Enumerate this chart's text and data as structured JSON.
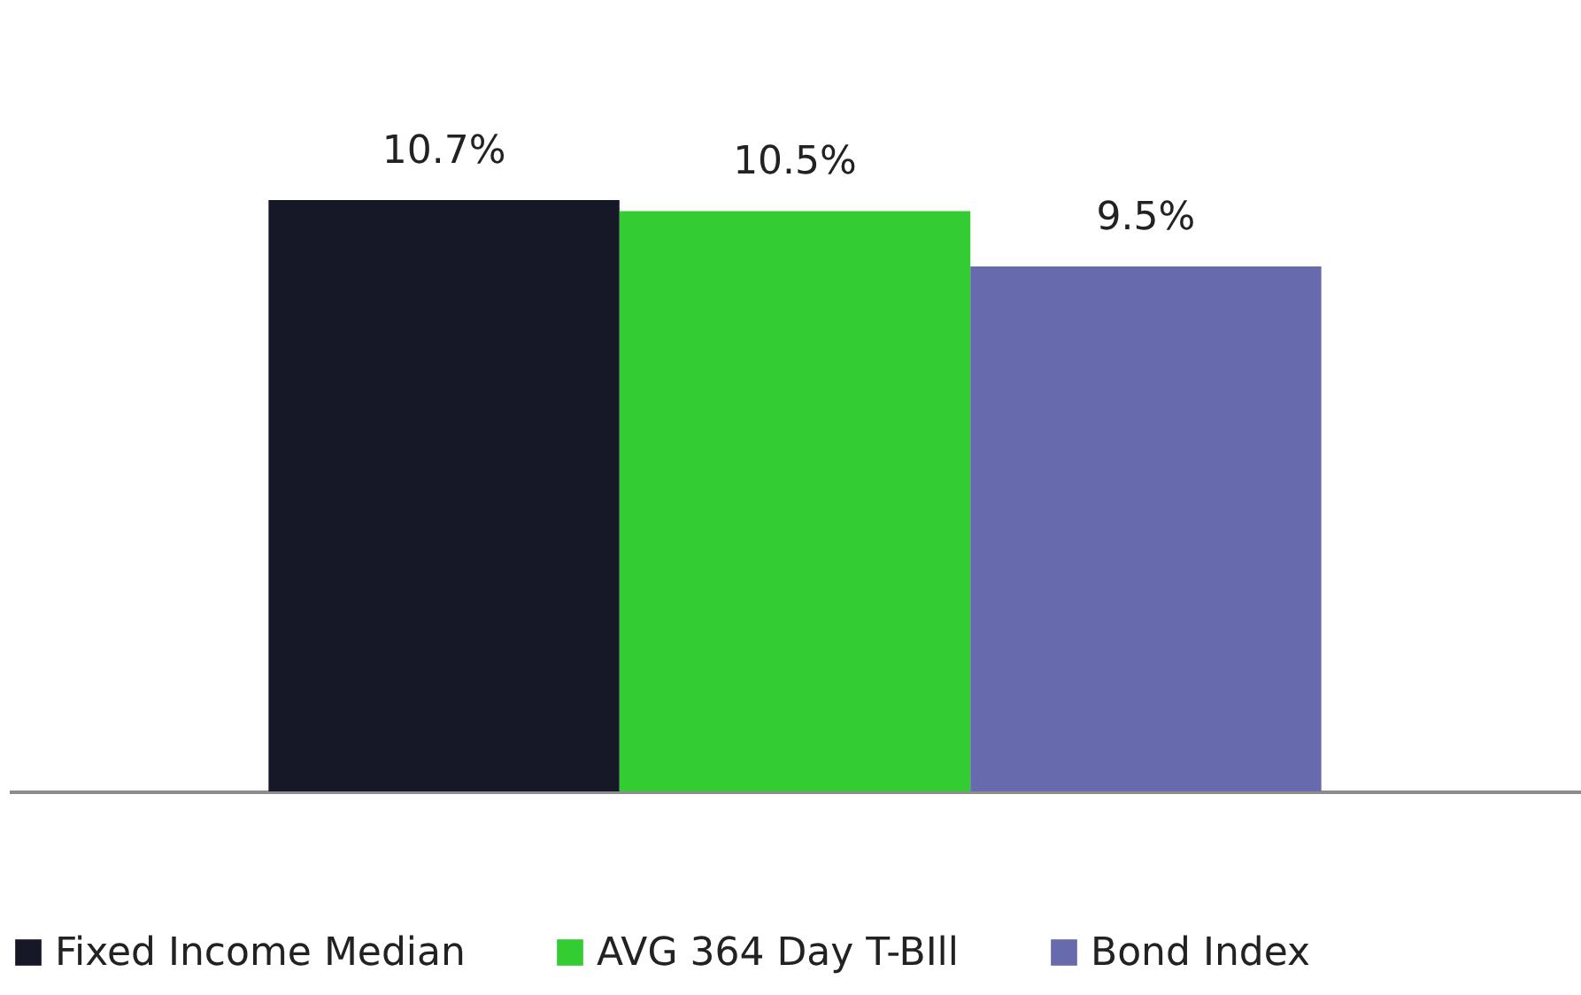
{
  "chart_data": {
    "type": "bar",
    "categories": [
      null
    ],
    "series": [
      {
        "name": "Fixed Income Median",
        "color": "#161827",
        "values": [
          10.7
        ],
        "value_labels": [
          "10.7%"
        ]
      },
      {
        "name": "AVG 364 Day T-BIll",
        "color": "#33cc33",
        "values": [
          10.5
        ],
        "value_labels": [
          "10.5%"
        ]
      },
      {
        "name": "Bond Index",
        "color": "#676aac",
        "values": [
          9.5
        ],
        "value_labels": [
          "9.5%"
        ]
      }
    ],
    "legend": "bottom",
    "grid": false,
    "tick_labels": false
  }
}
